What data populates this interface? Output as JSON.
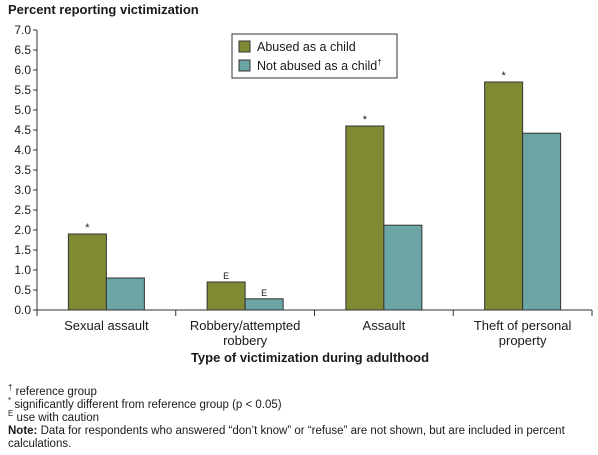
{
  "chart_data": {
    "type": "bar",
    "ylabel": "Percent reporting victimization",
    "xlabel": "Type of victimization during adulthood",
    "ylim": [
      0,
      7.0
    ],
    "ytick_step": 0.5,
    "categories": [
      "Sexual assault",
      "Robbery/attempted robbery",
      "Assault",
      "Theft of personal property"
    ],
    "category_lines": [
      [
        "Sexual assault"
      ],
      [
        "Robbery/attempted",
        "robbery"
      ],
      [
        "Assault"
      ],
      [
        "Theft of personal",
        "property"
      ]
    ],
    "series": [
      {
        "name": "Abused as a child",
        "values": [
          1.9,
          0.7,
          4.6,
          5.7
        ],
        "color": "#7f8a33",
        "labels": [
          "*",
          "E",
          "*",
          "*"
        ]
      },
      {
        "name": "Not abused as a child",
        "name_sup": "†",
        "values": [
          0.8,
          0.28,
          2.12,
          4.42
        ],
        "color": "#6ba5a5",
        "labels": [
          "",
          "E",
          "",
          ""
        ]
      }
    ],
    "legend_position": "top-center",
    "grid": false
  },
  "footnotes": [
    {
      "symbol": "†",
      "text": "reference group"
    },
    {
      "symbol": "*",
      "text": "significantly different from reference group (p < 0.05)"
    },
    {
      "symbol": "E",
      "text": "use with caution"
    }
  ],
  "note": {
    "label": "Note:",
    "text": "Data for respondents who answered “don’t know” or “refuse” are not shown, but are included in percent calculations."
  }
}
